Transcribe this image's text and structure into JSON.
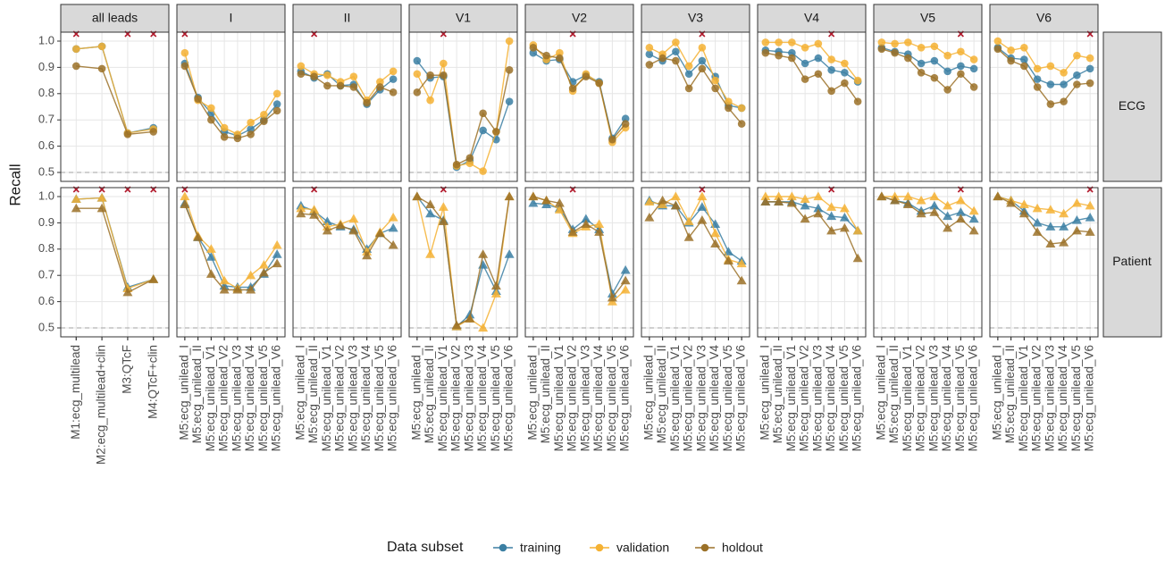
{
  "chart_data": {
    "type": "line",
    "y_label": "Recall",
    "ylim": [
      0.466,
      1.034
    ],
    "yticks": [
      0.5,
      0.6,
      0.7,
      0.8,
      0.9,
      {
        "value": 1,
        "label": "1.0"
      }
    ],
    "reference_line": 0.5,
    "grid": true,
    "legend_title": "Data subset",
    "legend_position": "bottom",
    "series": [
      {
        "name": "training",
        "color": "#3b7fa3"
      },
      {
        "name": "validation",
        "color": "#f5b234"
      },
      {
        "name": "holdout",
        "color": "#9b7128"
      }
    ],
    "rows": [
      {
        "name": "ECG",
        "marker": "circle"
      },
      {
        "name": "Patient",
        "marker": "triangle"
      }
    ],
    "panels": [
      {
        "name": "all leads",
        "categories": [
          "M1:ecg_multilead",
          "M2:ecg_multilead+clin",
          "M3:QTcF",
          "M4:QTcF+clin"
        ],
        "marked": [
          [
            0,
            2,
            3
          ],
          [
            0,
            1,
            2,
            3
          ]
        ],
        "values": [
          [
            [
              0.97,
              0.98,
              0.65,
              0.67
            ],
            [
              0.97,
              0.98,
              0.65,
              0.665
            ],
            [
              0.905,
              0.895,
              0.645,
              0.655
            ]
          ],
          [
            [
              0.99,
              0.995,
              0.655,
              0.685
            ],
            [
              0.99,
              0.995,
              0.65,
              0.685
            ],
            [
              0.955,
              0.955,
              0.635,
              0.685
            ]
          ]
        ]
      },
      {
        "name": "I",
        "categories": [
          "M5:ecg_unilead_I",
          "M5:ecg_unilead_II",
          "M5:ecg_unilead_V1",
          "M5:ecg_unilead_V2",
          "M5:ecg_unilead_V3",
          "M5:ecg_unilead_V4",
          "M5:ecg_unilead_V5",
          "M5:ecg_unilead_V6"
        ],
        "marked": [
          [
            0
          ],
          [
            0
          ]
        ],
        "values": [
          [
            [
              0.915,
              0.785,
              0.725,
              0.655,
              0.64,
              0.665,
              0.7,
              0.76
            ],
            [
              0.955,
              0.775,
              0.745,
              0.67,
              0.645,
              0.69,
              0.72,
              0.8
            ],
            [
              0.905,
              0.78,
              0.7,
              0.635,
              0.63,
              0.645,
              0.695,
              0.735
            ]
          ],
          [
            [
              0.975,
              0.845,
              0.77,
              0.66,
              0.655,
              0.655,
              0.705,
              0.78
            ],
            [
              1.0,
              0.85,
              0.8,
              0.68,
              0.65,
              0.7,
              0.74,
              0.815
            ],
            [
              0.97,
              0.845,
              0.705,
              0.645,
              0.645,
              0.645,
              0.71,
              0.745
            ]
          ]
        ]
      },
      {
        "name": "II",
        "categories": [
          "M5:ecg_unilead_I",
          "M5:ecg_unilead_II",
          "M5:ecg_unilead_V1",
          "M5:ecg_unilead_V2",
          "M5:ecg_unilead_V3",
          "M5:ecg_unilead_V4",
          "M5:ecg_unilead_V5",
          "M5:ecg_unilead_V6"
        ],
        "marked": [
          [
            1
          ],
          [
            1
          ]
        ],
        "values": [
          [
            [
              0.885,
              0.86,
              0.875,
              0.83,
              0.835,
              0.76,
              0.815,
              0.855
            ],
            [
              0.905,
              0.875,
              0.87,
              0.845,
              0.865,
              0.775,
              0.845,
              0.885
            ],
            [
              0.875,
              0.865,
              0.83,
              0.83,
              0.825,
              0.765,
              0.825,
              0.805
            ]
          ],
          [
            [
              0.965,
              0.945,
              0.905,
              0.885,
              0.875,
              0.8,
              0.86,
              0.88
            ],
            [
              0.955,
              0.95,
              0.885,
              0.895,
              0.915,
              0.79,
              0.865,
              0.92
            ],
            [
              0.935,
              0.93,
              0.87,
              0.89,
              0.87,
              0.775,
              0.86,
              0.815
            ]
          ]
        ]
      },
      {
        "name": "V1",
        "categories": [
          "M5:ecg_unilead_I",
          "M5:ecg_unilead_II",
          "M5:ecg_unilead_V1",
          "M5:ecg_unilead_V2",
          "M5:ecg_unilead_V3",
          "M5:ecg_unilead_V4",
          "M5:ecg_unilead_V5",
          "M5:ecg_unilead_V6"
        ],
        "marked": [
          [
            2
          ],
          [
            2
          ]
        ],
        "values": [
          [
            [
              0.925,
              0.86,
              0.865,
              0.52,
              0.545,
              0.66,
              0.625,
              0.77
            ],
            [
              0.875,
              0.775,
              0.915,
              0.525,
              0.535,
              0.505,
              0.655,
              1.0
            ],
            [
              0.805,
              0.87,
              0.87,
              0.53,
              0.555,
              0.725,
              0.655,
              0.89
            ]
          ],
          [
            [
              1.0,
              0.935,
              0.91,
              0.505,
              0.55,
              0.74,
              0.64,
              0.78
            ],
            [
              1.0,
              0.78,
              0.96,
              0.505,
              0.535,
              0.5,
              0.63,
              1.0
            ],
            [
              1.0,
              0.97,
              0.905,
              0.51,
              0.535,
              0.78,
              0.66,
              1.0
            ]
          ]
        ]
      },
      {
        "name": "V2",
        "categories": [
          "M5:ecg_unilead_I",
          "M5:ecg_unilead_II",
          "M5:ecg_unilead_V1",
          "M5:ecg_unilead_V2",
          "M5:ecg_unilead_V3",
          "M5:ecg_unilead_V4",
          "M5:ecg_unilead_V5",
          "M5:ecg_unilead_V6"
        ],
        "marked": [
          [
            3
          ],
          [
            3
          ]
        ],
        "values": [
          [
            [
              0.955,
              0.925,
              0.93,
              0.845,
              0.87,
              0.845,
              0.63,
              0.705
            ],
            [
              0.985,
              0.93,
              0.955,
              0.81,
              0.875,
              0.84,
              0.615,
              0.67
            ],
            [
              0.975,
              0.945,
              0.935,
              0.82,
              0.865,
              0.84,
              0.625,
              0.685
            ]
          ],
          [
            [
              0.975,
              0.97,
              0.955,
              0.875,
              0.915,
              0.875,
              0.63,
              0.72
            ],
            [
              1.0,
              0.985,
              0.95,
              0.86,
              0.885,
              0.895,
              0.6,
              0.645
            ],
            [
              1.0,
              0.985,
              0.975,
              0.865,
              0.895,
              0.865,
              0.615,
              0.68
            ]
          ]
        ]
      },
      {
        "name": "V3",
        "categories": [
          "M5:ecg_unilead_I",
          "M5:ecg_unilead_II",
          "M5:ecg_unilead_V1",
          "M5:ecg_unilead_V2",
          "M5:ecg_unilead_V3",
          "M5:ecg_unilead_V4",
          "M5:ecg_unilead_V5",
          "M5:ecg_unilead_V6"
        ],
        "marked": [
          [
            4
          ],
          [
            4
          ]
        ],
        "values": [
          [
            [
              0.95,
              0.925,
              0.96,
              0.875,
              0.925,
              0.865,
              0.755,
              0.745
            ],
            [
              0.975,
              0.95,
              0.995,
              0.905,
              0.975,
              0.85,
              0.77,
              0.745
            ],
            [
              0.91,
              0.935,
              0.925,
              0.82,
              0.895,
              0.82,
              0.745,
              0.685
            ]
          ],
          [
            [
              0.985,
              0.965,
              0.965,
              0.9,
              0.96,
              0.895,
              0.79,
              0.755
            ],
            [
              0.98,
              0.97,
              1.0,
              0.905,
              1.0,
              0.86,
              0.76,
              0.745
            ],
            [
              0.92,
              0.985,
              0.965,
              0.845,
              0.91,
              0.82,
              0.755,
              0.68
            ]
          ]
        ]
      },
      {
        "name": "V4",
        "categories": [
          "M5:ecg_unilead_I",
          "M5:ecg_unilead_II",
          "M5:ecg_unilead_V1",
          "M5:ecg_unilead_V2",
          "M5:ecg_unilead_V3",
          "M5:ecg_unilead_V4",
          "M5:ecg_unilead_V5",
          "M5:ecg_unilead_V6"
        ],
        "marked": [
          [
            5
          ],
          [
            5
          ]
        ],
        "values": [
          [
            [
              0.965,
              0.96,
              0.955,
              0.915,
              0.935,
              0.89,
              0.88,
              0.845
            ],
            [
              0.995,
              0.995,
              0.995,
              0.975,
              0.99,
              0.93,
              0.915,
              0.85
            ],
            [
              0.955,
              0.945,
              0.935,
              0.855,
              0.875,
              0.81,
              0.84,
              0.77
            ]
          ],
          [
            [
              0.98,
              0.98,
              0.98,
              0.965,
              0.955,
              0.925,
              0.92,
              0.87
            ],
            [
              1.0,
              1.0,
              1.0,
              0.99,
              1.0,
              0.96,
              0.955,
              0.87
            ],
            [
              0.98,
              0.98,
              0.975,
              0.915,
              0.935,
              0.87,
              0.88,
              0.765
            ]
          ]
        ]
      },
      {
        "name": "V5",
        "categories": [
          "M5:ecg_unilead_I",
          "M5:ecg_unilead_II",
          "M5:ecg_unilead_V1",
          "M5:ecg_unilead_V2",
          "M5:ecg_unilead_V3",
          "M5:ecg_unilead_V4",
          "M5:ecg_unilead_V5",
          "M5:ecg_unilead_V6"
        ],
        "marked": [
          [
            6
          ],
          [
            6
          ]
        ],
        "values": [
          [
            [
              0.975,
              0.96,
              0.95,
              0.915,
              0.925,
              0.885,
              0.905,
              0.895
            ],
            [
              0.995,
              0.99,
              0.995,
              0.975,
              0.98,
              0.945,
              0.96,
              0.93
            ],
            [
              0.97,
              0.955,
              0.935,
              0.88,
              0.86,
              0.815,
              0.875,
              0.825
            ]
          ],
          [
            [
              1.0,
              0.985,
              0.975,
              0.945,
              0.965,
              0.925,
              0.94,
              0.915
            ],
            [
              1.0,
              1.0,
              1.0,
              0.985,
              1.0,
              0.965,
              0.985,
              0.945
            ],
            [
              1.0,
              0.985,
              0.97,
              0.935,
              0.94,
              0.88,
              0.915,
              0.87
            ]
          ]
        ]
      },
      {
        "name": "V6",
        "categories": [
          "M5:ecg_unilead_I",
          "M5:ecg_unilead_II",
          "M5:ecg_unilead_V1",
          "M5:ecg_unilead_V2",
          "M5:ecg_unilead_V3",
          "M5:ecg_unilead_V4",
          "M5:ecg_unilead_V5",
          "M5:ecg_unilead_V6"
        ],
        "marked": [
          [
            7
          ],
          [
            7
          ]
        ],
        "values": [
          [
            [
              0.975,
              0.935,
              0.93,
              0.855,
              0.835,
              0.835,
              0.87,
              0.895
            ],
            [
              1.0,
              0.965,
              0.975,
              0.895,
              0.905,
              0.88,
              0.945,
              0.935
            ],
            [
              0.97,
              0.925,
              0.905,
              0.825,
              0.76,
              0.77,
              0.835,
              0.84
            ]
          ],
          [
            [
              1.0,
              0.985,
              0.945,
              0.9,
              0.885,
              0.885,
              0.91,
              0.92
            ],
            [
              1.0,
              0.985,
              0.97,
              0.955,
              0.95,
              0.935,
              0.975,
              0.965
            ],
            [
              1.0,
              0.975,
              0.935,
              0.865,
              0.82,
              0.825,
              0.87,
              0.865
            ]
          ]
        ]
      }
    ]
  }
}
